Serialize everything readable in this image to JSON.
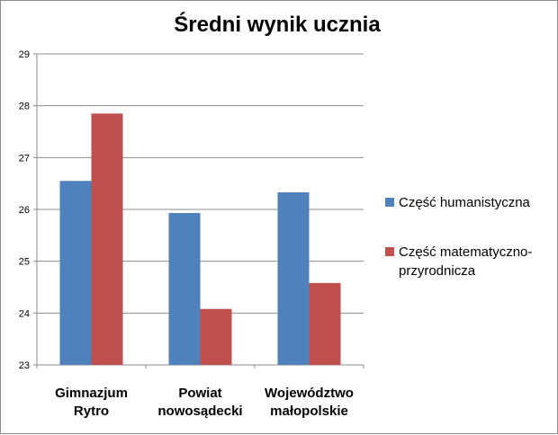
{
  "chart_data": {
    "type": "bar",
    "title": "Średni wynik ucznia",
    "categories": [
      [
        "Gimnazjum",
        "Rytro"
      ],
      [
        "Powiat",
        "nowosądecki"
      ],
      [
        "Województwo",
        "małopolskie"
      ]
    ],
    "series": [
      {
        "name": "Część humanistyczna",
        "values": [
          26.55,
          25.93,
          26.33
        ],
        "color": "#4F81BD"
      },
      {
        "name": [
          "Część matematyczno-",
          "przyrodnicza"
        ],
        "values": [
          27.85,
          24.08,
          24.58
        ],
        "color": "#C0504D"
      }
    ],
    "ylim": [
      23,
      29
    ],
    "yticks": [
      "23",
      "24",
      "25",
      "26",
      "27",
      "28",
      "29"
    ],
    "grid": true,
    "legend": "right"
  }
}
